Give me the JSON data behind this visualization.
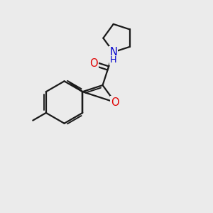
{
  "background_color": "#ebebeb",
  "bond_color": "#1a1a1a",
  "oxygen_color": "#e00000",
  "nitrogen_color": "#0000cc",
  "line_width": 1.6,
  "font_size_atom": 10.5,
  "fig_width": 3.0,
  "fig_height": 3.0,
  "xlim": [
    0,
    10
  ],
  "ylim": [
    0,
    10
  ]
}
